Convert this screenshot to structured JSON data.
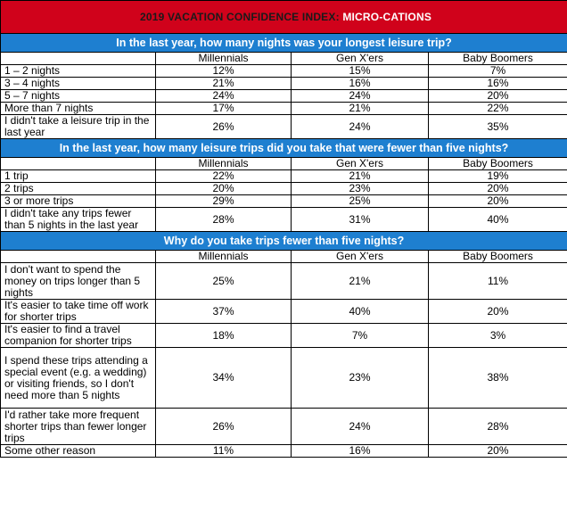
{
  "title": {
    "prefix": "2019 VACATION CONFIDENCE INDEX: ",
    "highlight": "MICRO-CATIONS"
  },
  "colors": {
    "title_bg": "#d0021b",
    "section_bg": "#1e7fd0"
  },
  "columns": [
    "Millennials",
    "Gen X'ers",
    "Baby Boomers"
  ],
  "sections": [
    {
      "heading": "In the last year, how many nights was your longest leisure trip?",
      "rows": [
        {
          "label": "1 – 2 nights",
          "values": [
            "12%",
            "15%",
            "7%"
          ]
        },
        {
          "label": "3 – 4 nights",
          "values": [
            "21%",
            "16%",
            "16%"
          ]
        },
        {
          "label": "5 – 7 nights",
          "values": [
            "24%",
            "24%",
            "20%"
          ]
        },
        {
          "label": "More than 7 nights",
          "values": [
            "17%",
            "21%",
            "22%"
          ]
        },
        {
          "label": "I didn't take a leisure trip in the last year",
          "values": [
            "26%",
            "24%",
            "35%"
          ]
        }
      ]
    },
    {
      "heading": "In the last year, how many leisure trips did you take that were fewer than five nights?",
      "rows": [
        {
          "label": "1 trip",
          "values": [
            "22%",
            "21%",
            "19%"
          ]
        },
        {
          "label": "2 trips",
          "values": [
            "20%",
            "23%",
            "20%"
          ]
        },
        {
          "label": "3 or more trips",
          "values": [
            "29%",
            "25%",
            "20%"
          ]
        },
        {
          "label": "I didn't take any trips fewer than 5 nights in the last year",
          "values": [
            "28%",
            "31%",
            "40%"
          ]
        }
      ]
    },
    {
      "heading": "Why do you take trips fewer than five nights?",
      "rows": [
        {
          "label": "I don't want to spend the money on trips longer than 5 nights",
          "values": [
            "25%",
            "21%",
            "11%"
          ]
        },
        {
          "label": "It's easier to take time off work for shorter trips",
          "values": [
            "37%",
            "40%",
            "20%"
          ]
        },
        {
          "label": "It's easier to find a travel companion for shorter trips",
          "values": [
            "18%",
            "7%",
            "3%"
          ]
        },
        {
          "label": "I spend these trips attending a special event (e.g. a wedding) or visiting friends, so I don't need more than 5 nights",
          "values": [
            "34%",
            "23%",
            "38%"
          ]
        },
        {
          "label": "I'd rather take more frequent shorter trips than fewer longer trips",
          "values": [
            "26%",
            "24%",
            "28%"
          ]
        },
        {
          "label": "Some other reason",
          "values": [
            "11%",
            "16%",
            "20%"
          ]
        }
      ]
    }
  ]
}
